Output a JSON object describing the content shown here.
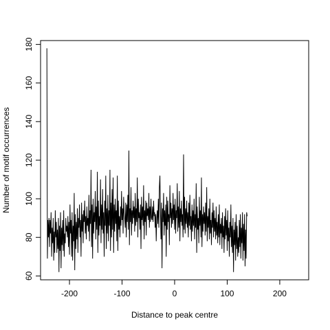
{
  "chart_data": {
    "type": "line",
    "title": "",
    "xlabel": "Distance to peak centre",
    "ylabel": "Number of motif occurrences",
    "xlim": [
      -255,
      255
    ],
    "ylim": [
      58,
      182
    ],
    "xticks": [
      -200,
      -100,
      0,
      100,
      200
    ],
    "yticks": [
      60,
      80,
      100,
      120,
      140,
      160,
      180
    ],
    "grid": false,
    "line_color": "#000000",
    "series": [
      {
        "x_start": -243,
        "x_step": 1,
        "values": [
          178,
          69,
          89,
          80,
          90,
          75,
          89,
          82,
          93,
          70,
          85,
          77,
          90,
          68,
          83,
          72,
          94,
          80,
          88,
          72,
          84,
          74,
          90,
          62,
          86,
          73,
          93,
          64,
          85,
          76,
          89,
          73,
          94,
          70,
          82,
          77,
          90,
          83,
          86,
          80,
          91,
          75,
          88,
          71,
          97,
          82,
          89,
          70,
          93,
          68,
          86,
          78,
          103,
          63,
          92,
          74,
          88,
          79,
          95,
          72,
          90,
          85,
          97,
          80,
          89,
          70,
          98,
          83,
          92,
          77,
          94,
          88,
          99,
          82,
          91,
          79,
          96,
          86,
          90,
          83,
          102,
          78,
          94,
          87,
          115,
          75,
          97,
          69,
          100,
          82,
          93,
          88,
          104,
          79,
          96,
          84,
          114,
          72,
          99,
          81,
          91,
          86,
          110,
          77,
          97,
          84,
          105,
          82,
          93,
          70,
          99,
          86,
          112,
          74,
          95,
          82,
          102,
          78,
          94,
          86,
          115,
          73,
          98,
          80,
          105,
          84,
          111,
          72,
          97,
          83,
          100,
          87,
          94,
          78,
          112,
          73,
          99,
          84,
          91,
          80,
          96,
          86,
          104,
          89,
          95,
          82,
          101,
          93,
          90,
          85,
          98,
          80,
          97,
          88,
          102,
          84,
          125,
          76,
          95,
          88,
          106,
          81,
          94,
          87,
          99,
          90,
          96,
          83,
          103,
          86,
          95,
          88,
          111,
          80,
          100,
          90,
          93,
          84,
          97,
          74,
          101,
          89,
          96,
          86,
          107,
          79,
          94,
          88,
          99,
          81,
          98,
          91,
          95,
          89,
          103,
          85,
          96,
          88,
          100,
          90,
          89,
          96,
          88,
          99,
          91,
          93,
          85,
          92,
          78,
          90,
          94,
          87,
          100,
          85,
          106,
          112,
          94,
          79,
          98,
          64,
          95,
          88,
          103,
          81,
          94,
          86,
          97,
          70,
          101,
          84,
          99,
          88,
          92,
          76,
          107,
          90,
          98,
          85,
          95,
          87,
          103,
          89,
          97,
          84,
          100,
          82,
          94,
          90,
          108,
          83,
          96,
          85,
          104,
          78,
          95,
          88,
          99,
          86,
          92,
          80,
          123,
          84,
          101,
          82,
          95,
          87,
          99,
          85,
          93,
          80,
          98,
          86,
          102,
          84,
          91,
          78,
          97,
          83,
          94,
          86,
          100,
          79,
          92,
          85,
          108,
          72,
          96,
          84,
          90,
          77,
          101,
          86,
          94,
          80,
          111,
          75,
          92,
          83,
          96,
          87,
          93,
          81,
          98,
          83,
          106,
          78,
          91,
          85,
          95,
          79,
          100,
          82,
          89,
          76,
          93,
          85,
          98,
          80,
          94,
          83,
          90,
          79,
          96,
          81,
          88,
          77,
          92,
          80,
          97,
          76,
          87,
          82,
          90,
          74,
          93,
          80,
          86,
          72,
          91,
          79,
          95,
          81,
          89,
          73,
          94,
          78,
          85,
          70,
          88,
          80,
          97,
          75,
          86,
          72,
          90,
          62,
          84,
          76,
          88,
          68,
          92,
          74,
          86,
          70,
          80,
          72,
          89,
          75,
          92,
          69,
          85,
          77,
          93,
          68,
          87,
          73,
          92,
          65,
          84,
          69,
          93,
          91
        ]
      }
    ]
  }
}
